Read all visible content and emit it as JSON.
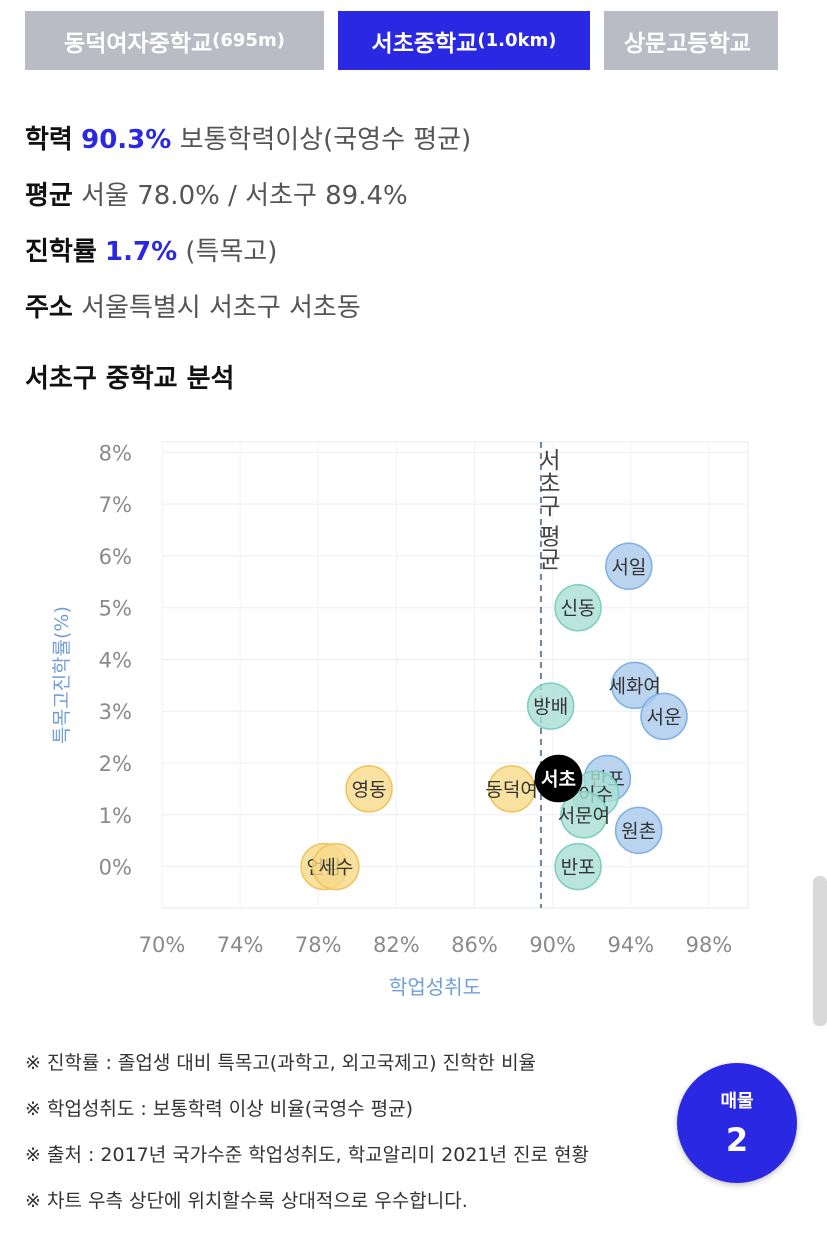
{
  "tabs": [
    {
      "name": "동덕여자중학교",
      "dist": "(695m)",
      "active": false
    },
    {
      "name": "서초중학교",
      "dist": "(1.0km)",
      "active": true
    },
    {
      "name": "상문고등학교",
      "dist": "",
      "active": false
    }
  ],
  "info": {
    "achievement": {
      "label": "학력",
      "value": "90.3%",
      "desc": "보통학력이상(국영수 평균)"
    },
    "average": {
      "label": "평균",
      "text": "서울 78.0% / 서초구 89.4%"
    },
    "advance": {
      "label": "진학률",
      "value": "1.7%",
      "desc": "(특목고)"
    },
    "address": {
      "label": "주소",
      "text": "서울특별시 서초구 서초동"
    }
  },
  "section_title": "서초구 중학교 분석",
  "chart_data": {
    "type": "scatter",
    "title": "",
    "xlabel": "학업성취도",
    "ylabel": "특목고진학률(%)",
    "xlim": [
      70,
      100
    ],
    "ylim": [
      -0.8,
      8.2
    ],
    "xticks": [
      "70%",
      "74%",
      "78%",
      "82%",
      "86%",
      "90%",
      "94%",
      "98%"
    ],
    "xtick_values": [
      70,
      74,
      78,
      82,
      86,
      90,
      94,
      98
    ],
    "yticks": [
      "0%",
      "1%",
      "2%",
      "3%",
      "4%",
      "5%",
      "6%",
      "7%",
      "8%"
    ],
    "ytick_values": [
      0,
      1,
      2,
      3,
      4,
      5,
      6,
      7,
      8
    ],
    "reference_line": {
      "x": 89.4,
      "label": "서초구 평균"
    },
    "grid": true,
    "colors": {
      "blue": "#a9c9ec",
      "teal": "#a7dfd4",
      "yellow": "#f7d98a",
      "current": "#000000"
    },
    "points": [
      {
        "name": "서일",
        "x": 93.9,
        "y": 5.8,
        "group": "blue"
      },
      {
        "name": "신동",
        "x": 91.3,
        "y": 5.0,
        "group": "teal"
      },
      {
        "name": "세화여",
        "x": 94.2,
        "y": 3.5,
        "group": "blue"
      },
      {
        "name": "서운",
        "x": 95.7,
        "y": 2.9,
        "group": "blue"
      },
      {
        "name": "방배",
        "x": 89.9,
        "y": 3.1,
        "group": "teal"
      },
      {
        "name": "반포",
        "x": 92.8,
        "y": 1.7,
        "group": "blue"
      },
      {
        "name": "이수",
        "x": 92.2,
        "y": 1.4,
        "group": "teal"
      },
      {
        "name": "서문여",
        "x": 91.6,
        "y": 1.0,
        "group": "teal"
      },
      {
        "name": "원촌",
        "x": 94.4,
        "y": 0.7,
        "group": "blue"
      },
      {
        "name": "반포",
        "x": 91.3,
        "y": 0.0,
        "group": "teal"
      },
      {
        "name": "동덕여",
        "x": 87.9,
        "y": 1.5,
        "group": "yellow"
      },
      {
        "name": "영동",
        "x": 80.6,
        "y": 1.5,
        "group": "yellow"
      },
      {
        "name": "언남",
        "x": 78.3,
        "y": 0.0,
        "group": "yellow"
      },
      {
        "name": "세수",
        "x": 78.9,
        "y": 0.0,
        "group": "yellow"
      },
      {
        "name": "서초",
        "x": 90.3,
        "y": 1.7,
        "group": "current"
      }
    ]
  },
  "notes": [
    "※ 진학률 : 졸업생 대비 특목고(과학고, 외고국제고) 진학한 비율",
    "※ 학업성취도 : 보통학력 이상 비율(국영수 평균)",
    "※ 출처 : 2017년 국가수준 학업성취도, 학교알리미 2021년 진로 현황",
    "※ 차트 우측 상단에 위치할수록 상대적으로 우수합니다."
  ],
  "listing": {
    "label": "매물",
    "count": "2"
  }
}
